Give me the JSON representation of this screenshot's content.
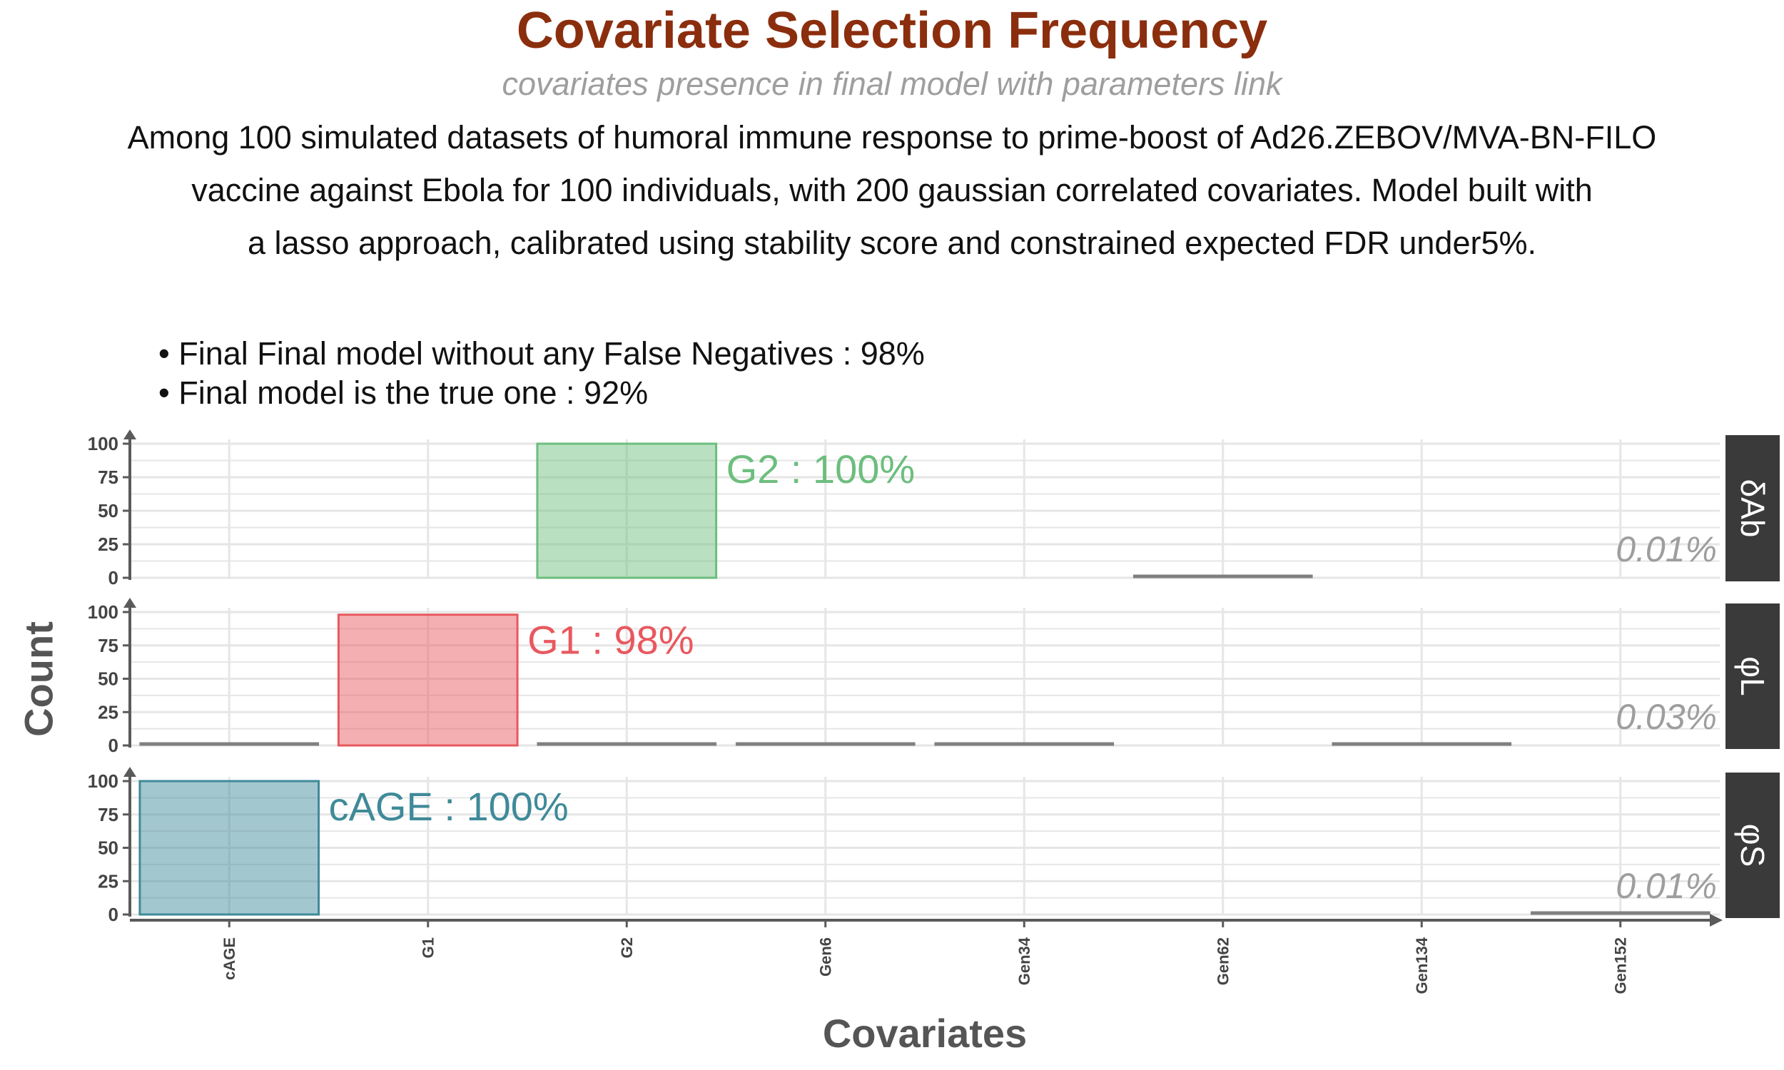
{
  "title": "Covariate Selection Frequency",
  "subtitle": "covariates presence in final model with parameters link",
  "caption_lines": [
    "Among 100 simulated datasets of humoral immune response to prime-boost of Ad26.ZEBOV/MVA-BN-FILO",
    "vaccine against Ebola for 100 individuals, with 200 gaussian correlated covariates. Model built with",
    "a lasso approach, calibrated using stability score and constrained expected FDR under5%."
  ],
  "bullets": [
    "• Final Final model without any False Negatives : 98%",
    "• Final model is the true one  : 92%"
  ],
  "chart_data": {
    "type": "bar",
    "xlabel": "Covariates",
    "ylabel": "Count",
    "ylim": [
      0,
      100
    ],
    "yticks": [
      0,
      25,
      50,
      75,
      100
    ],
    "grid": true,
    "categories": [
      "cAGE",
      "G1",
      "G2",
      "Gen6",
      "Gen34",
      "Gen62",
      "Gen134",
      "Gen152"
    ],
    "panels": [
      {
        "strip": "δAb",
        "values": [
          0,
          0,
          100,
          0,
          0,
          1,
          0,
          0
        ],
        "highlight": "G2",
        "highlight_color": "#6DBE7E",
        "annotation": "G2 : 100%",
        "corner_note": "0.01%"
      },
      {
        "strip": "φL",
        "values": [
          1,
          98,
          1,
          2,
          1,
          0,
          1,
          0
        ],
        "highlight": "G1",
        "highlight_color": "#E8585E",
        "annotation": "G1 : 98%",
        "corner_note": "0.03%"
      },
      {
        "strip": "φS",
        "values": [
          100,
          0,
          0,
          0,
          0,
          0,
          0,
          1
        ],
        "highlight": "cAGE",
        "highlight_color": "#3F8A99",
        "annotation": "cAGE : 100%",
        "corner_note": "0.01%"
      }
    ],
    "colors": {
      "other_bars": "#808080",
      "axis": "#5a5a5a",
      "grid": "#e6e6e6",
      "strip_bg": "#3a3a3a",
      "strip_text": "#ffffff",
      "corner_note": "#9e9e9e"
    }
  }
}
